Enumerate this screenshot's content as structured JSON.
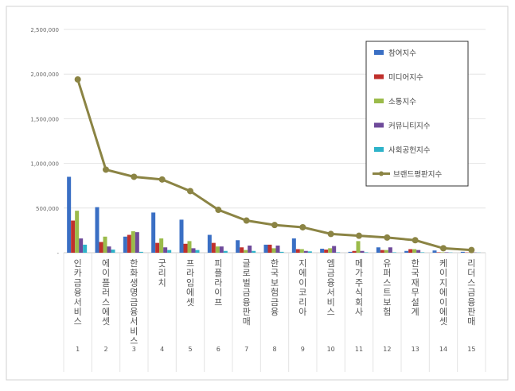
{
  "chart_data": {
    "type": "bar",
    "title": "",
    "xlabel": "",
    "ylabel": "",
    "ylim": [
      0,
      2500000
    ],
    "yticks": [
      "-",
      "500,000",
      "1,000,000",
      "1,500,000",
      "2,000,000",
      "2,500,000"
    ],
    "grid": true,
    "legend_position": "top-right",
    "categories": [
      "인카금융서비스",
      "에이플러스에셋",
      "한화생명금융서비스",
      "굿리치",
      "프라임에셋",
      "피플라이프",
      "글로벌금융판매",
      "한국보험금융",
      "지에이코리아",
      "엠금융서비스",
      "메가주식회사",
      "유퍼스트보험",
      "한국재무설계",
      "케이지에이에셋",
      "리더스금융판매"
    ],
    "ranks": [
      "1",
      "2",
      "3",
      "4",
      "5",
      "6",
      "7",
      "8",
      "9",
      "10",
      "11",
      "12",
      "13",
      "14",
      "15"
    ],
    "series": [
      {
        "name": "참여지수",
        "color": "#3a6fc4",
        "type": "bar",
        "values": [
          850000,
          510000,
          180000,
          450000,
          370000,
          200000,
          140000,
          90000,
          160000,
          45000,
          10000,
          60000,
          20000,
          25000,
          10000
        ]
      },
      {
        "name": "미디어지수",
        "color": "#c0302c",
        "type": "bar",
        "values": [
          360000,
          120000,
          200000,
          110000,
          100000,
          110000,
          60000,
          90000,
          40000,
          35000,
          20000,
          30000,
          40000,
          5000,
          3000
        ]
      },
      {
        "name": "소통지수",
        "color": "#9bbb4a",
        "type": "bar",
        "values": [
          470000,
          180000,
          240000,
          160000,
          130000,
          70000,
          30000,
          50000,
          40000,
          50000,
          130000,
          30000,
          40000,
          5000,
          3000
        ]
      },
      {
        "name": "커뮤니티지수",
        "color": "#6e4a9a",
        "type": "bar",
        "values": [
          160000,
          70000,
          230000,
          60000,
          50000,
          70000,
          80000,
          80000,
          20000,
          75000,
          20000,
          60000,
          30000,
          5000,
          3000
        ]
      },
      {
        "name": "사회공헌지수",
        "color": "#2eb3c9",
        "type": "bar",
        "values": [
          90000,
          35000,
          10000,
          30000,
          30000,
          20000,
          20000,
          10000,
          15000,
          5000,
          5000,
          5000,
          5000,
          3000,
          2000
        ]
      },
      {
        "name": "브랜드평판지수",
        "color": "#8b8444",
        "type": "line",
        "values": [
          1940000,
          930000,
          850000,
          820000,
          690000,
          480000,
          360000,
          310000,
          285000,
          210000,
          190000,
          170000,
          140000,
          50000,
          30000
        ]
      }
    ]
  }
}
